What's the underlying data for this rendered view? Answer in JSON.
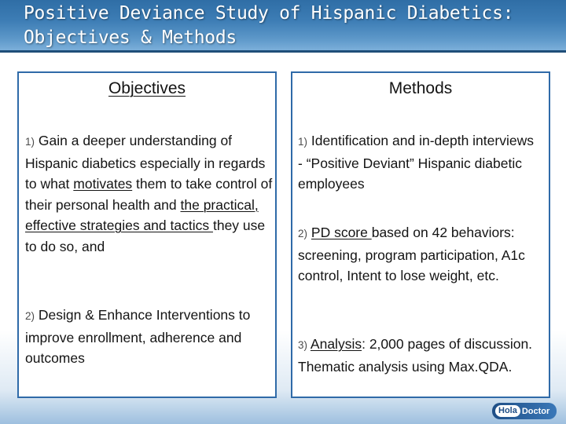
{
  "title": {
    "line1": "Positive Deviance Study of Hispanic Diabetics:",
    "line2": "Objectives & Methods"
  },
  "objectives": {
    "heading": "Objectives",
    "items": [
      {
        "num": "1)",
        "parts": [
          "Gain a deeper understanding of Hispanic diabetics especially in regards to what ",
          "motivates",
          " them to take control of their personal health and ",
          "the practical, effective strategies and tactics ",
          "they use to do so, and"
        ]
      },
      {
        "num": "2)",
        "parts": [
          "Design & Enhance Interventions  to improve enrollment, adherence and outcomes"
        ]
      }
    ]
  },
  "methods": {
    "heading": "Methods",
    "items": [
      {
        "num": "1)",
        "parts": [
          "Identification and in-depth interviews  - “Positive Deviant” Hispanic diabetic employees"
        ]
      },
      {
        "num": "2)",
        "parts": [
          "PD score ",
          "based on 42 behaviors: screening, program participation, A1c control, Intent to lose weight, etc."
        ]
      },
      {
        "num": "3)",
        "parts": [
          "Analysis",
          ": 2,000 pages of discussion. Thematic analysis using Max.QDA."
        ]
      }
    ]
  },
  "logo": {
    "text_a": "Hola",
    "text_b": "Doctor"
  },
  "colors": {
    "title_bar": "#3d7db5",
    "panel_border": "#2f6aa8"
  }
}
